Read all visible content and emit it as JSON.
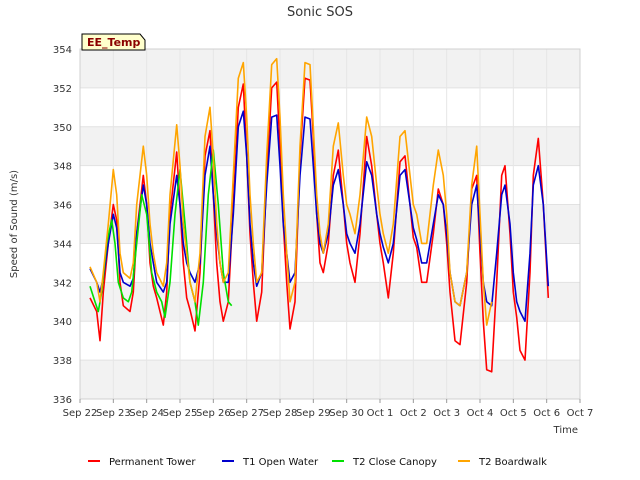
{
  "chart_data": {
    "type": "line",
    "title": "Sonic SOS",
    "xlabel": "Time",
    "ylabel": "Speed of Sound (m/s)",
    "badge": "EE_Temp",
    "ylim": [
      336,
      354
    ],
    "y_ticks": [
      336,
      338,
      340,
      342,
      344,
      346,
      348,
      350,
      352,
      354
    ],
    "x_ticks": [
      "Sep 22",
      "Sep 23",
      "Sep 24",
      "Sep 25",
      "Sep 26",
      "Sep 27",
      "Sep 28",
      "Sep 29",
      "Sep 30",
      "Oct 1",
      "Oct 2",
      "Oct 3",
      "Oct 4",
      "Oct 5",
      "Oct 6",
      "Oct 7"
    ],
    "xlim_days": [
      0,
      15
    ],
    "grid": true,
    "legend_position": "bottom",
    "series": [
      {
        "name": "Permanent Tower",
        "color": "#ff0000",
        "x": [
          0.3,
          0.5,
          0.6,
          0.7,
          0.85,
          1.0,
          1.1,
          1.2,
          1.3,
          1.5,
          1.6,
          1.7,
          1.9,
          2.0,
          2.1,
          2.2,
          2.3,
          2.5,
          2.6,
          2.7,
          2.9,
          3.0,
          3.1,
          3.2,
          3.3,
          3.45,
          3.6,
          3.75,
          3.9,
          4.0,
          4.1,
          4.2,
          4.3,
          4.45,
          4.6,
          4.75,
          4.9,
          5.0,
          5.1,
          5.2,
          5.3,
          5.45,
          5.6,
          5.75,
          5.9,
          6.0,
          6.1,
          6.2,
          6.3,
          6.45,
          6.6,
          6.75,
          6.9,
          7.0,
          7.1,
          7.2,
          7.3,
          7.45,
          7.6,
          7.75,
          7.9,
          8.0,
          8.1,
          8.25,
          8.4,
          8.6,
          8.75,
          8.9,
          9.0,
          9.1,
          9.25,
          9.4,
          9.6,
          9.75,
          9.9,
          10.0,
          10.1,
          10.25,
          10.4,
          10.6,
          10.75,
          10.9,
          11.0,
          11.1,
          11.25,
          11.4,
          11.6,
          11.75,
          11.9,
          12.0,
          12.1,
          12.2,
          12.35,
          12.5,
          12.65,
          12.75,
          12.9,
          13.0,
          13.1,
          13.2,
          13.35,
          13.5,
          13.6,
          13.75,
          13.9,
          14.05
        ],
        "values": [
          341.2,
          340.5,
          339.0,
          341.5,
          344.0,
          346.0,
          345.2,
          342.0,
          340.8,
          340.5,
          341.5,
          344.5,
          347.5,
          346.0,
          343.0,
          341.8,
          341.2,
          339.8,
          341.5,
          345.5,
          348.7,
          346.0,
          343.0,
          341.2,
          340.6,
          339.5,
          342.5,
          348.5,
          349.8,
          346.5,
          343.0,
          341.0,
          340.0,
          341.0,
          346.0,
          351.0,
          352.2,
          348.5,
          344.5,
          342.0,
          340.0,
          341.5,
          347.5,
          352.0,
          352.3,
          349.0,
          345.0,
          342.0,
          339.6,
          341.0,
          348.5,
          352.5,
          352.4,
          349.5,
          345.5,
          343.0,
          342.5,
          344.0,
          347.5,
          348.8,
          346.0,
          344.0,
          343.0,
          342.0,
          344.5,
          349.5,
          348.0,
          345.5,
          344.0,
          343.0,
          341.2,
          343.5,
          348.2,
          348.5,
          346.0,
          344.3,
          343.8,
          342.0,
          342.0,
          344.5,
          346.8,
          346.0,
          344.0,
          341.5,
          339.0,
          338.8,
          342.0,
          346.8,
          347.5,
          343.5,
          340.0,
          337.5,
          337.4,
          342.0,
          347.5,
          348.0,
          344.5,
          341.5,
          340.2,
          338.5,
          338.0,
          342.5,
          347.5,
          349.4,
          346.0,
          341.2
        ]
      },
      {
        "name": "T1 Open Water",
        "color": "#0000cc",
        "x": [
          0.3,
          0.5,
          0.6,
          0.7,
          0.85,
          1.0,
          1.1,
          1.2,
          1.3,
          1.5,
          1.6,
          1.7,
          1.9,
          2.0,
          2.1,
          2.2,
          2.3,
          2.5,
          2.6,
          2.7,
          2.9,
          3.0,
          3.1,
          3.2,
          3.3,
          3.45,
          3.6,
          3.75,
          3.9,
          4.0,
          4.1,
          4.2,
          4.3,
          4.45,
          4.6,
          4.75,
          4.9,
          5.0,
          5.1,
          5.2,
          5.3,
          5.45,
          5.6,
          5.75,
          5.9,
          6.0,
          6.1,
          6.2,
          6.3,
          6.45,
          6.6,
          6.75,
          6.9,
          7.0,
          7.1,
          7.2,
          7.3,
          7.45,
          7.6,
          7.75,
          7.9,
          8.0,
          8.1,
          8.25,
          8.4,
          8.6,
          8.75,
          8.9,
          9.0,
          9.1,
          9.25,
          9.4,
          9.6,
          9.75,
          9.9,
          10.0,
          10.1,
          10.25,
          10.4,
          10.6,
          10.75,
          10.9,
          11.0,
          11.1,
          11.25,
          11.4,
          11.6,
          11.75,
          11.9,
          12.0,
          12.1,
          12.2,
          12.35,
          12.5,
          12.65,
          12.75,
          12.9,
          13.0,
          13.1,
          13.2,
          13.35,
          13.5,
          13.6,
          13.75,
          13.9,
          14.05
        ],
        "values": [
          342.7,
          342.0,
          341.5,
          342.2,
          344.0,
          345.5,
          344.8,
          342.5,
          342.0,
          341.8,
          342.2,
          344.5,
          347.0,
          346.0,
          344.0,
          343.0,
          342.0,
          341.5,
          342.0,
          345.0,
          347.5,
          346.0,
          344.0,
          343.0,
          342.5,
          342.0,
          343.0,
          347.5,
          349.0,
          346.5,
          344.5,
          343.0,
          342.0,
          342.0,
          345.5,
          350.0,
          350.8,
          348.5,
          345.0,
          343.0,
          341.8,
          342.5,
          347.0,
          350.5,
          350.6,
          348.0,
          345.0,
          343.5,
          342.0,
          342.5,
          347.5,
          350.5,
          350.4,
          348.0,
          345.5,
          344.0,
          343.5,
          344.5,
          347.0,
          347.8,
          346.0,
          344.5,
          344.0,
          343.5,
          345.0,
          348.2,
          347.5,
          345.5,
          344.5,
          343.8,
          343.0,
          344.0,
          347.5,
          347.8,
          346.0,
          344.8,
          344.2,
          343.0,
          343.0,
          345.0,
          346.5,
          346.0,
          344.5,
          342.5,
          341.0,
          340.8,
          342.5,
          346.0,
          347.0,
          344.5,
          342.0,
          341.0,
          340.8,
          343.5,
          346.5,
          347.0,
          345.0,
          342.5,
          341.0,
          340.5,
          340.0,
          343.5,
          347.0,
          348.0,
          346.0,
          341.8
        ]
      },
      {
        "name": "T2 Close Canopy",
        "color": "#00e000",
        "x": [
          0.3,
          0.45,
          0.55,
          0.65,
          0.8,
          0.95,
          1.05,
          1.15,
          1.3,
          1.45,
          1.55,
          1.7,
          1.85,
          2.0,
          2.15,
          2.3,
          2.45,
          2.55,
          2.7,
          2.85,
          3.0,
          3.15,
          3.3,
          3.45,
          3.55,
          3.7,
          3.85,
          4.0,
          4.15,
          4.3,
          4.45,
          4.55
        ],
        "values": [
          341.8,
          341.0,
          340.5,
          341.5,
          344.0,
          345.2,
          344.0,
          342.0,
          341.2,
          341.0,
          341.5,
          344.0,
          346.5,
          345.5,
          342.5,
          341.5,
          341.0,
          340.2,
          342.0,
          345.5,
          347.8,
          345.0,
          342.0,
          341.0,
          339.8,
          342.0,
          346.5,
          348.8,
          346.0,
          342.5,
          341.0,
          340.8
        ]
      },
      {
        "name": "T2 Boardwalk",
        "color": "#ffa500",
        "x": [
          0.3,
          0.5,
          0.6,
          0.7,
          0.85,
          1.0,
          1.1,
          1.2,
          1.3,
          1.5,
          1.6,
          1.7,
          1.9,
          2.0,
          2.1,
          2.2,
          2.3,
          2.5,
          2.6,
          2.7,
          2.9,
          3.0,
          3.1,
          3.2,
          3.3,
          3.45,
          3.6,
          3.75,
          3.9,
          4.0,
          4.1,
          4.2,
          4.3,
          4.45,
          4.6,
          4.75,
          4.9,
          5.0,
          5.1,
          5.2,
          5.3,
          5.45,
          5.6,
          5.75,
          5.9,
          6.0,
          6.1,
          6.2,
          6.3,
          6.45,
          6.6,
          6.75,
          6.9,
          7.0,
          7.1,
          7.2,
          7.3,
          7.45,
          7.6,
          7.75,
          7.9,
          8.0,
          8.1,
          8.25,
          8.4,
          8.6,
          8.75,
          8.9,
          9.0,
          9.1,
          9.25,
          9.4,
          9.6,
          9.75,
          9.9,
          10.0,
          10.1,
          10.25,
          10.4,
          10.6,
          10.75,
          10.9,
          11.0,
          11.1,
          11.25,
          11.4,
          11.6,
          11.75,
          11.9,
          12.0,
          12.1,
          12.2,
          12.35
        ],
        "values": [
          342.8,
          342.0,
          341.0,
          342.5,
          345.0,
          347.8,
          346.5,
          343.5,
          342.5,
          342.2,
          343.0,
          346.0,
          349.0,
          347.5,
          345.0,
          343.5,
          342.5,
          341.8,
          343.0,
          346.5,
          350.1,
          348.0,
          345.0,
          343.5,
          342.0,
          341.0,
          343.5,
          349.5,
          351.0,
          348.5,
          345.0,
          343.0,
          342.0,
          342.5,
          347.5,
          352.5,
          353.3,
          350.5,
          346.5,
          344.0,
          342.0,
          342.5,
          348.5,
          353.2,
          353.5,
          350.5,
          346.5,
          343.5,
          341.0,
          342.0,
          349.0,
          353.3,
          353.2,
          350.0,
          346.5,
          344.5,
          343.5,
          345.0,
          349.0,
          350.2,
          347.5,
          346.0,
          345.5,
          344.5,
          346.5,
          350.5,
          349.5,
          347.0,
          345.5,
          344.5,
          343.5,
          345.0,
          349.5,
          349.8,
          347.5,
          346.0,
          345.5,
          344.0,
          344.0,
          347.0,
          348.8,
          347.5,
          345.5,
          342.5,
          341.0,
          340.8,
          342.5,
          347.0,
          349.0,
          345.5,
          342.0,
          339.8,
          341.0
        ]
      }
    ]
  }
}
